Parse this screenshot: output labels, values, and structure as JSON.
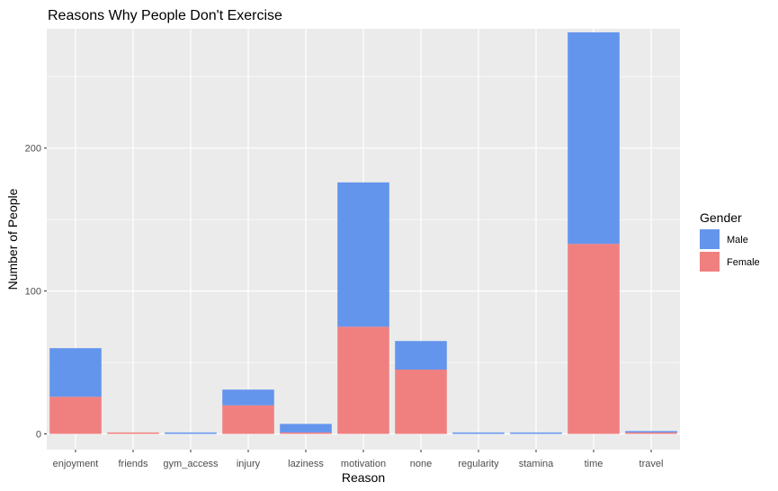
{
  "chart_data": {
    "type": "bar",
    "stacked": true,
    "title": "Reasons Why People Don't Exercise",
    "xlabel": "Reason",
    "ylabel": "Number of People",
    "categories": [
      "enjoyment",
      "friends",
      "gym_access",
      "injury",
      "laziness",
      "motivation",
      "none",
      "regularity",
      "stamina",
      "time",
      "travel"
    ],
    "series": [
      {
        "name": "Female",
        "color": "#F08080",
        "values": [
          26,
          1,
          0,
          20,
          1,
          75,
          45,
          0,
          0,
          133,
          1
        ]
      },
      {
        "name": "Male",
        "color": "#6495ED",
        "values": [
          34,
          0,
          1,
          11,
          6,
          101,
          20,
          1,
          1,
          148,
          1
        ]
      }
    ],
    "ylim": [
      -11,
      283.5
    ],
    "yticks": [
      0,
      100,
      200
    ],
    "grid": true,
    "legend": {
      "title": "Gender",
      "placement": "right",
      "entries": [
        {
          "label": "Male",
          "color": "#6495ED"
        },
        {
          "label": "Female",
          "color": "#F08080"
        }
      ]
    },
    "panel_background": "#EBEBEB",
    "grid_color": "#FFFFFF"
  }
}
